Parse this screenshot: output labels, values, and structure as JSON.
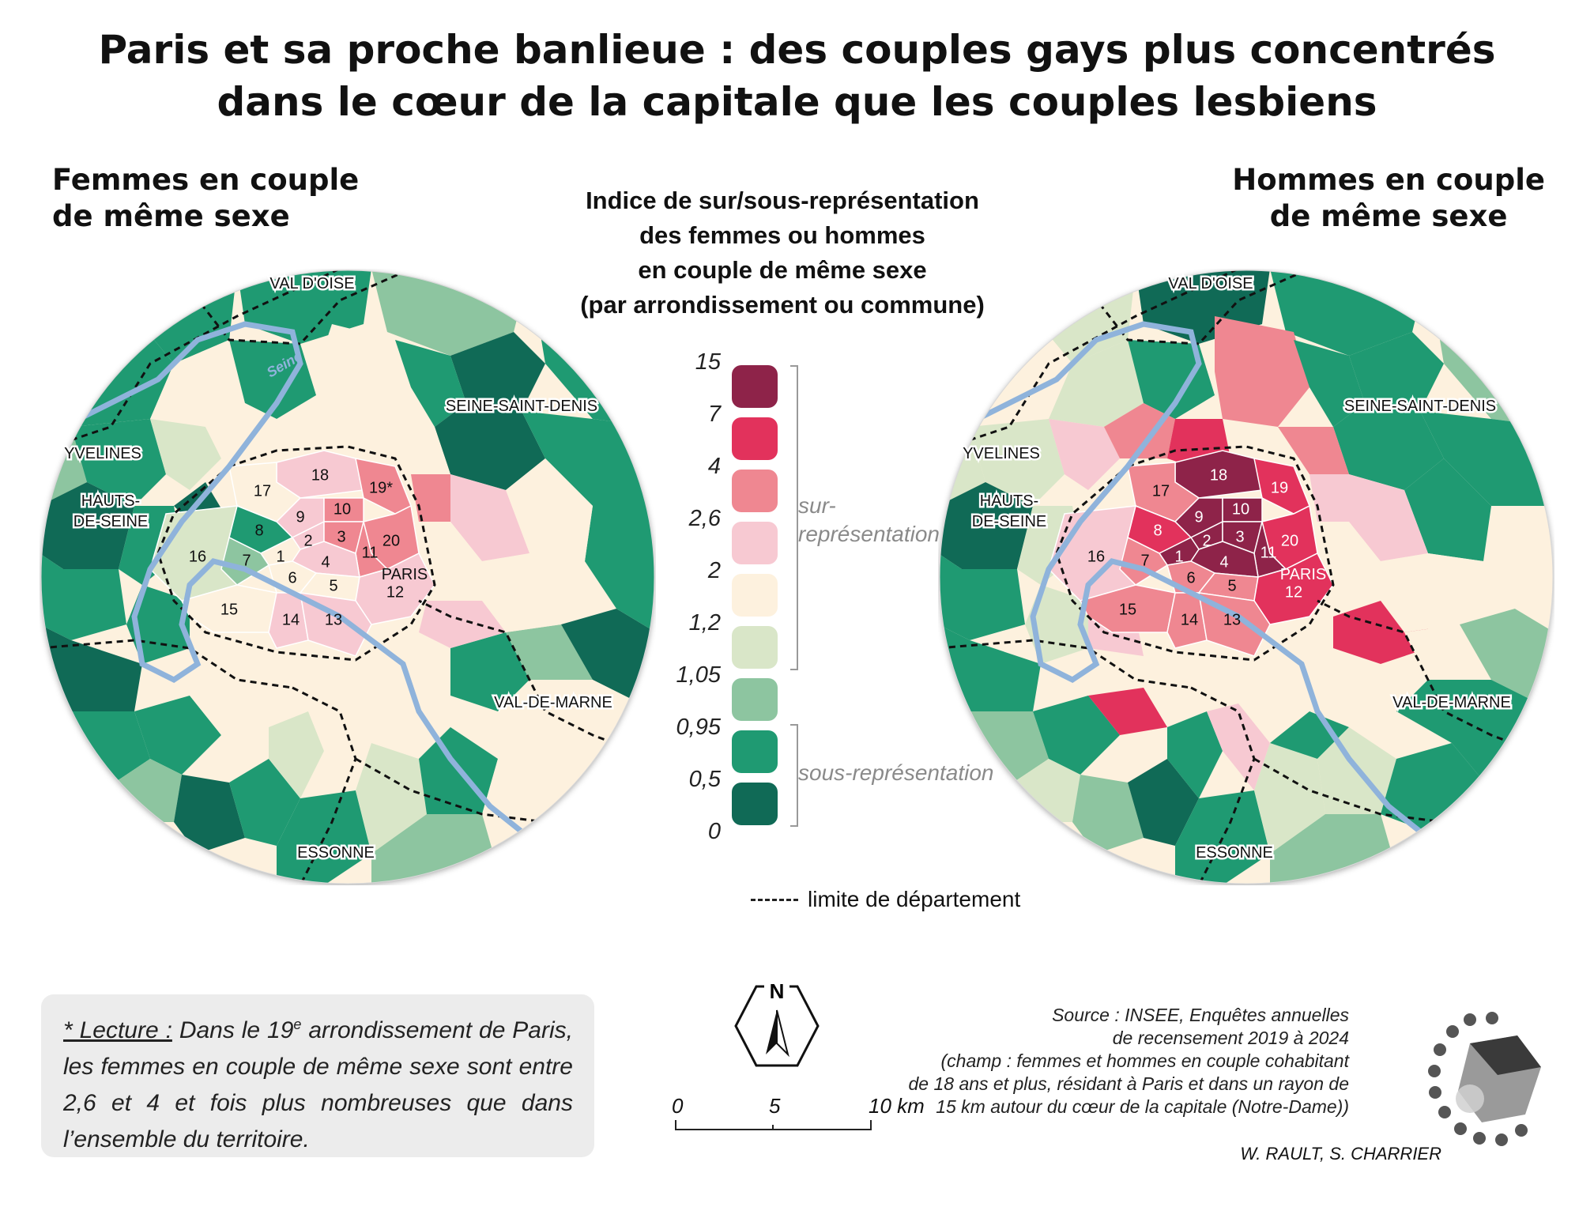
{
  "title": {
    "line1": "Paris et sa proche banlieue : des couples gays plus concentrés",
    "line2": "dans le cœur de la capitale que les couples lesbiens"
  },
  "maps": {
    "left": {
      "title_line1": "Femmes en couple",
      "title_line2": "de même sexe",
      "paris_label": "PARIS",
      "arr19_label": "19*"
    },
    "right": {
      "title_line1": "Hommes en couple",
      "title_line2": "de même sexe",
      "paris_label": "PARIS",
      "arr19_label": "19"
    }
  },
  "departments": {
    "val_doise": "VAL D'OISE",
    "seine_saint_denis": "SEINE-SAINT-DENIS",
    "yvelines": "YVELINES",
    "hauts_de_seine_1": "HAUTS-",
    "hauts_de_seine_2": "DE-SEINE",
    "val_de_marne": "VAL-DE-MARNE",
    "essonne": "ESSONNE"
  },
  "river_label": "Seine",
  "legend": {
    "title_line1": "Indice de sur/sous-représentation",
    "title_line2": "des femmes ou hommes",
    "title_line3": "en couple de même sexe",
    "title_line4": "(par arrondissement ou commune)",
    "ticks": [
      "15",
      "7",
      "4",
      "2,6",
      "2",
      "1,2",
      "1,05",
      "0,95",
      "0,5",
      "0"
    ],
    "classes": [
      {
        "color": "#8e2349",
        "range": "7 – 15"
      },
      {
        "color": "#e2325c",
        "range": "4 – 7"
      },
      {
        "color": "#ef8791",
        "range": "2,6 – 4"
      },
      {
        "color": "#f7c9d2",
        "range": "2 – 2,6"
      },
      {
        "color": "#fdf1de",
        "range": "1,2 – 2"
      },
      {
        "color": "#d9e6c8",
        "range": "1,05 – 1,2"
      },
      {
        "color": "#8dc5a0",
        "range": "0,95 – 1,05"
      },
      {
        "color": "#1f9a72",
        "range": "0,5 – 0,95"
      },
      {
        "color": "#106a56",
        "range": "0 – 0,5"
      }
    ],
    "over_label_1": "sur-",
    "over_label_2": "représentation",
    "under_label": "sous-représentation",
    "dept_boundary": "limite de département"
  },
  "reading": {
    "prefix": "* Lecture :",
    "text_a": " Dans le 19",
    "sup": "e",
    "text_b": " arrondissement de Paris, les femmes en couple de même sexe sont entre 2,6 et 4 et fois plus nombreuses que dans l’ensemble du territoire."
  },
  "north": "N",
  "scale": {
    "labels": [
      "0",
      "5",
      "10 km"
    ]
  },
  "source": {
    "line1": "Source : INSEE, Enquêtes annuelles",
    "line2": "de recensement 2019 à 2024",
    "line3": "(champ : femmes et hommes en couple cohabitant",
    "line4": "de 18 ans et plus, résidant à Paris et dans un rayon de",
    "line5": "15 km autour du cœur de la capitale (Notre-Dame))"
  },
  "authors": "W. RAULT, S. CHARRIER",
  "arrondissements": {
    "left": [
      {
        "n": "1",
        "cls": 4
      },
      {
        "n": "2",
        "cls": 3
      },
      {
        "n": "3",
        "cls": 2
      },
      {
        "n": "4",
        "cls": 3
      },
      {
        "n": "5",
        "cls": 4
      },
      {
        "n": "6",
        "cls": 4
      },
      {
        "n": "7",
        "cls": 6
      },
      {
        "n": "8",
        "cls": 7
      },
      {
        "n": "9",
        "cls": 3
      },
      {
        "n": "10",
        "cls": 2
      },
      {
        "n": "11",
        "cls": 2
      },
      {
        "n": "12",
        "cls": 3
      },
      {
        "n": "13",
        "cls": 3
      },
      {
        "n": "14",
        "cls": 3
      },
      {
        "n": "15",
        "cls": 4
      },
      {
        "n": "16",
        "cls": 5
      },
      {
        "n": "17",
        "cls": 4
      },
      {
        "n": "18",
        "cls": 3
      },
      {
        "n": "19",
        "cls": 2
      },
      {
        "n": "20",
        "cls": 2
      }
    ],
    "right": [
      {
        "n": "1",
        "cls": 0
      },
      {
        "n": "2",
        "cls": 0
      },
      {
        "n": "3",
        "cls": 0
      },
      {
        "n": "4",
        "cls": 0
      },
      {
        "n": "5",
        "cls": 2
      },
      {
        "n": "6",
        "cls": 2
      },
      {
        "n": "7",
        "cls": 2
      },
      {
        "n": "8",
        "cls": 1
      },
      {
        "n": "9",
        "cls": 0
      },
      {
        "n": "10",
        "cls": 0
      },
      {
        "n": "11",
        "cls": 0
      },
      {
        "n": "12",
        "cls": 1
      },
      {
        "n": "13",
        "cls": 2
      },
      {
        "n": "14",
        "cls": 2
      },
      {
        "n": "15",
        "cls": 2
      },
      {
        "n": "16",
        "cls": 3
      },
      {
        "n": "17",
        "cls": 2
      },
      {
        "n": "18",
        "cls": 0
      },
      {
        "n": "19",
        "cls": 1
      },
      {
        "n": "20",
        "cls": 1
      }
    ]
  }
}
